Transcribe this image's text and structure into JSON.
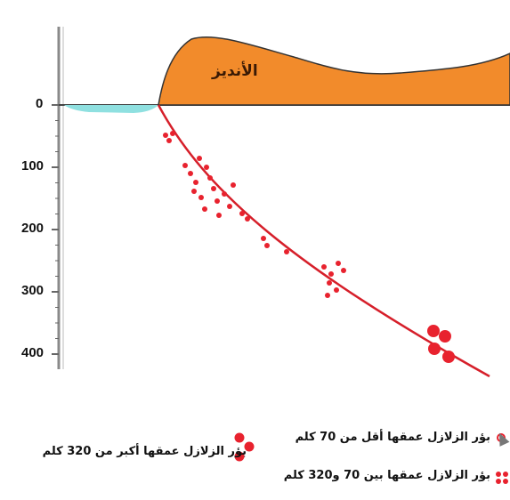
{
  "depth_axis": {
    "ticks": [
      {
        "value": 0,
        "label": "0"
      },
      {
        "value": 100,
        "label": "100"
      },
      {
        "value": 200,
        "label": "200"
      },
      {
        "value": 300,
        "label": "300"
      },
      {
        "value": 400,
        "label": "400"
      }
    ]
  },
  "mountain": {
    "label": "الأنديز",
    "color": "#f28b2b"
  },
  "ocean": {
    "color": "#8fe0e0"
  },
  "slab": {
    "color": "#d61f2a"
  },
  "legend": {
    "shallow": "بؤر الزلازل عمقها أقل من 70 كلم",
    "intermediate": "بؤر الزلازل عمقها بين 70 و320 كلم",
    "deep": "بؤر الزلازل عمقها أكبر من 320 كلم"
  },
  "colors": {
    "quake": "#e8222e",
    "axis": "#888888"
  }
}
